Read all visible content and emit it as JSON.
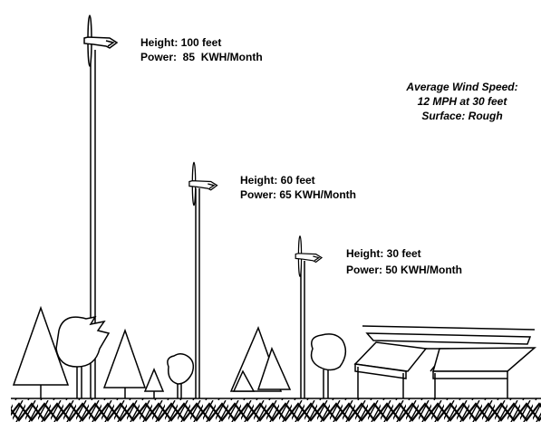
{
  "turbines": [
    {
      "height": "Height: 100 feet",
      "power": "Power:  85  KWH/Month"
    },
    {
      "height": "Height: 60 feet",
      "power": "Power: 65 KWH/Month"
    },
    {
      "height": "Height: 30 feet",
      "power": "Power: 50 KWH/Month"
    }
  ],
  "conditions": {
    "lines": [
      "Average Wind Speed:",
      "12 MPH at 30 feet",
      "Surface: Rough"
    ]
  }
}
